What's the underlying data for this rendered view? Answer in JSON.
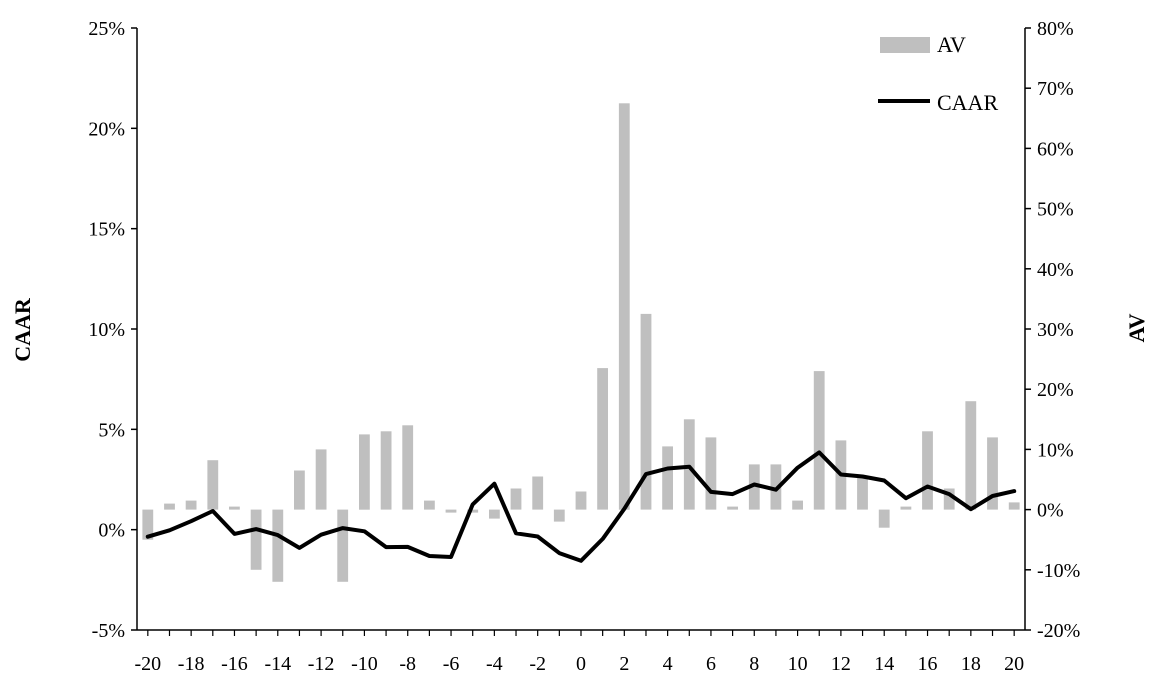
{
  "chart_data": {
    "type": "bar+line",
    "title": "",
    "x": [
      -20,
      -19,
      -18,
      -17,
      -16,
      -15,
      -14,
      -13,
      -12,
      -11,
      -10,
      -9,
      -8,
      -7,
      -6,
      -5,
      -4,
      -3,
      -2,
      -1,
      0,
      1,
      2,
      3,
      4,
      5,
      6,
      7,
      8,
      9,
      10,
      11,
      12,
      13,
      14,
      15,
      16,
      17,
      18,
      19,
      20
    ],
    "x_tick_labels": [
      "-20",
      "-18",
      "-16",
      "-14",
      "-12",
      "-10",
      "-8",
      "-6",
      "-4",
      "-2",
      "0",
      "2",
      "4",
      "6",
      "8",
      "10",
      "12",
      "14",
      "16",
      "18",
      "20"
    ],
    "ylabel_left": "CAAR",
    "ylabel_right": "AV",
    "ylim_left": [
      -0.05,
      0.25
    ],
    "ylim_right": [
      -0.2,
      0.8
    ],
    "left_tick_labels": [
      "-5%",
      "0%",
      "5%",
      "10%",
      "15%",
      "20%",
      "25%"
    ],
    "right_tick_labels": [
      "-20%",
      "-10%",
      "0%",
      "10%",
      "20%",
      "30%",
      "40%",
      "50%",
      "60%",
      "70%",
      "80%"
    ],
    "legend_position": "top-right",
    "series": [
      {
        "name": "AV",
        "type": "bar",
        "axis": "right",
        "color": "#bfbfbf",
        "values": [
          -0.05,
          0.01,
          0.015,
          0.082,
          0.005,
          -0.1,
          -0.12,
          0.065,
          0.1,
          -0.12,
          0.125,
          0.13,
          0.14,
          0.015,
          -0.005,
          -0.005,
          -0.015,
          0.035,
          0.055,
          -0.02,
          0.03,
          0.235,
          0.675,
          0.325,
          0.105,
          0.15,
          0.12,
          0.005,
          0.075,
          0.075,
          0.015,
          0.23,
          0.115,
          0.055,
          -0.03,
          0.005,
          0.13,
          0.035,
          0.18,
          0.12,
          0.012
        ]
      },
      {
        "name": "CAAR",
        "type": "line",
        "axis": "left",
        "color": "#000000",
        "values": [
          -0.0035,
          -0.0003,
          0.0042,
          0.0093,
          -0.0021,
          0.0003,
          -0.0027,
          -0.0091,
          -0.0025,
          0.0008,
          -0.0008,
          -0.0087,
          -0.0086,
          -0.0131,
          -0.0136,
          0.0126,
          0.0229,
          -0.0018,
          -0.0034,
          -0.0117,
          -0.0155,
          -0.0046,
          0.0104,
          0.0277,
          0.0305,
          0.0314,
          0.0188,
          0.0177,
          0.0225,
          0.0199,
          0.0309,
          0.0385,
          0.0275,
          0.0265,
          0.0245,
          0.0157,
          0.0215,
          0.0177,
          0.0102,
          0.0168,
          0.0192
        ]
      }
    ]
  }
}
